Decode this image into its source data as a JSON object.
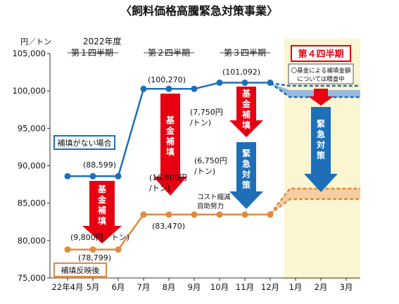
{
  "chart_data": {
    "type": "line",
    "title": "〈飼料価格高騰緊急対策事業〉",
    "ylabel": "円／トン",
    "ylim": [
      75000,
      105000
    ],
    "yticks": [
      75000,
      80000,
      85000,
      90000,
      95000,
      100000,
      105000
    ],
    "ytick_labels": [
      "75,000",
      "80,000",
      "85,000",
      "90,000",
      "95,000",
      "100,000",
      "105,000"
    ],
    "x_labels": [
      "22年4月",
      "5月",
      "6月",
      "7月",
      "8月",
      "9月",
      "10月",
      "11月",
      "12月",
      "1月",
      "2月",
      "3月"
    ],
    "series": [
      {
        "name": "補填がない場合",
        "color": "#1f6fb8",
        "x": [
          0,
          1,
          2,
          3,
          4,
          5,
          6,
          7,
          8
        ],
        "values": [
          88599,
          88599,
          88599,
          100270,
          100270,
          100270,
          101092,
          101092,
          101092
        ]
      },
      {
        "name": "補填反映後",
        "color": "#e08a3c",
        "x": [
          0,
          1,
          2,
          3,
          4,
          5,
          6,
          7,
          8
        ],
        "values": [
          78799,
          78799,
          78799,
          83470,
          83470,
          83470,
          83470,
          83470,
          83470
        ]
      }
    ],
    "year_label": "2022年度",
    "periods": [
      "第１四半期",
      "第２四半期",
      "第３四半期",
      "第４四半期"
    ],
    "annotations": {
      "p1_high": "(88,599)",
      "p1_low": "(78,799)",
      "p1_gap": "(9,800円／トン)",
      "p2_high": "(100,270)",
      "p2_low": "(83,470)",
      "p2_gap_line1": "(16,800円",
      "p2_gap_line2": "/トン)",
      "p3_high": "(101,092)",
      "p3_gap1_line1": "(7,750円",
      "p3_gap1_line2": "/トン)",
      "p3_gap2_line1": "(6,750円",
      "p3_gap2_line2": "/トン)",
      "cost_line1": "コスト縮減",
      "cost_line2": "自助努力",
      "q4_note_line1": "〇基金による補填金額",
      "q4_note_line2": "については精査中"
    },
    "arrows": {
      "kikin": "基金補填",
      "kinkyu": "緊急対策"
    },
    "colors": {
      "red_arrow": "#e60012",
      "blue_arrow": "#1f6fb8",
      "blue_band": "#8aaee0",
      "orange_band": "#f5c79a",
      "q4_bg": "#fbf6d2",
      "q4_border": "#e60012"
    }
  }
}
